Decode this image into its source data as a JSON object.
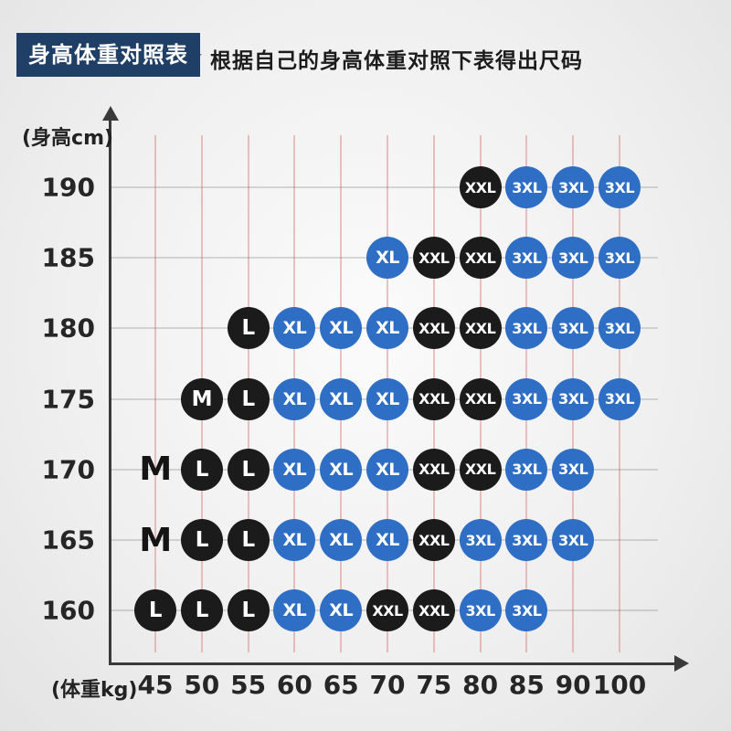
{
  "header": {
    "title": "身高体重对照表",
    "star": "★",
    "subtitle": "根据自己的身高体重对照下表得出尺码"
  },
  "chart_data": {
    "type": "scatter",
    "title": "身高体重对照表",
    "xlabel": "(体重kg)",
    "ylabel": "(身高cm)",
    "x_ticks": [
      45,
      50,
      55,
      60,
      65,
      70,
      75,
      80,
      85,
      90,
      100
    ],
    "y_ticks": [
      190,
      185,
      180,
      175,
      170,
      165,
      160
    ],
    "colors": {
      "dot_black": "#1b1b1b",
      "dot_blue": "#2e6ec4",
      "header_navy": "#1f3f66"
    },
    "points": [
      {
        "height": 190,
        "weight": 80,
        "size": "XXL",
        "color": "black"
      },
      {
        "height": 190,
        "weight": 85,
        "size": "3XL",
        "color": "blue"
      },
      {
        "height": 190,
        "weight": 90,
        "size": "3XL",
        "color": "blue"
      },
      {
        "height": 190,
        "weight": 100,
        "size": "3XL",
        "color": "blue"
      },
      {
        "height": 185,
        "weight": 70,
        "size": "XL",
        "color": "blue"
      },
      {
        "height": 185,
        "weight": 75,
        "size": "XXL",
        "color": "black"
      },
      {
        "height": 185,
        "weight": 80,
        "size": "XXL",
        "color": "black"
      },
      {
        "height": 185,
        "weight": 85,
        "size": "3XL",
        "color": "blue"
      },
      {
        "height": 185,
        "weight": 90,
        "size": "3XL",
        "color": "blue"
      },
      {
        "height": 185,
        "weight": 100,
        "size": "3XL",
        "color": "blue"
      },
      {
        "height": 180,
        "weight": 55,
        "size": "L",
        "color": "black"
      },
      {
        "height": 180,
        "weight": 60,
        "size": "XL",
        "color": "blue"
      },
      {
        "height": 180,
        "weight": 65,
        "size": "XL",
        "color": "blue"
      },
      {
        "height": 180,
        "weight": 70,
        "size": "XL",
        "color": "blue"
      },
      {
        "height": 180,
        "weight": 75,
        "size": "XXL",
        "color": "black"
      },
      {
        "height": 180,
        "weight": 80,
        "size": "XXL",
        "color": "black"
      },
      {
        "height": 180,
        "weight": 85,
        "size": "3XL",
        "color": "blue"
      },
      {
        "height": 180,
        "weight": 90,
        "size": "3XL",
        "color": "blue"
      },
      {
        "height": 180,
        "weight": 100,
        "size": "3XL",
        "color": "blue"
      },
      {
        "height": 175,
        "weight": 50,
        "size": "M",
        "color": "black"
      },
      {
        "height": 175,
        "weight": 55,
        "size": "L",
        "color": "black"
      },
      {
        "height": 175,
        "weight": 60,
        "size": "XL",
        "color": "blue"
      },
      {
        "height": 175,
        "weight": 65,
        "size": "XL",
        "color": "blue"
      },
      {
        "height": 175,
        "weight": 70,
        "size": "XL",
        "color": "blue"
      },
      {
        "height": 175,
        "weight": 75,
        "size": "XXL",
        "color": "black"
      },
      {
        "height": 175,
        "weight": 80,
        "size": "XXL",
        "color": "black"
      },
      {
        "height": 175,
        "weight": 85,
        "size": "3XL",
        "color": "blue"
      },
      {
        "height": 175,
        "weight": 90,
        "size": "3XL",
        "color": "blue"
      },
      {
        "height": 175,
        "weight": 100,
        "size": "3XL",
        "color": "blue"
      },
      {
        "height": 170,
        "weight": 45,
        "size": "M",
        "color": "text"
      },
      {
        "height": 170,
        "weight": 50,
        "size": "L",
        "color": "black"
      },
      {
        "height": 170,
        "weight": 55,
        "size": "L",
        "color": "black"
      },
      {
        "height": 170,
        "weight": 60,
        "size": "XL",
        "color": "blue"
      },
      {
        "height": 170,
        "weight": 65,
        "size": "XL",
        "color": "blue"
      },
      {
        "height": 170,
        "weight": 70,
        "size": "XL",
        "color": "blue"
      },
      {
        "height": 170,
        "weight": 75,
        "size": "XXL",
        "color": "black"
      },
      {
        "height": 170,
        "weight": 80,
        "size": "XXL",
        "color": "black"
      },
      {
        "height": 170,
        "weight": 85,
        "size": "3XL",
        "color": "blue"
      },
      {
        "height": 170,
        "weight": 90,
        "size": "3XL",
        "color": "blue"
      },
      {
        "height": 165,
        "weight": 45,
        "size": "M",
        "color": "text"
      },
      {
        "height": 165,
        "weight": 50,
        "size": "L",
        "color": "black"
      },
      {
        "height": 165,
        "weight": 55,
        "size": "L",
        "color": "black"
      },
      {
        "height": 165,
        "weight": 60,
        "size": "XL",
        "color": "blue"
      },
      {
        "height": 165,
        "weight": 65,
        "size": "XL",
        "color": "blue"
      },
      {
        "height": 165,
        "weight": 70,
        "size": "XL",
        "color": "blue"
      },
      {
        "height": 165,
        "weight": 75,
        "size": "XXL",
        "color": "black"
      },
      {
        "height": 165,
        "weight": 80,
        "size": "3XL",
        "color": "blue"
      },
      {
        "height": 165,
        "weight": 85,
        "size": "3XL",
        "color": "blue"
      },
      {
        "height": 165,
        "weight": 90,
        "size": "3XL",
        "color": "blue"
      },
      {
        "height": 160,
        "weight": 45,
        "size": "L",
        "color": "black"
      },
      {
        "height": 160,
        "weight": 50,
        "size": "L",
        "color": "black"
      },
      {
        "height": 160,
        "weight": 55,
        "size": "L",
        "color": "black"
      },
      {
        "height": 160,
        "weight": 60,
        "size": "XL",
        "color": "blue"
      },
      {
        "height": 160,
        "weight": 65,
        "size": "XL",
        "color": "blue"
      },
      {
        "height": 160,
        "weight": 70,
        "size": "XXL",
        "color": "black"
      },
      {
        "height": 160,
        "weight": 75,
        "size": "XXL",
        "color": "black"
      },
      {
        "height": 160,
        "weight": 80,
        "size": "3XL",
        "color": "blue"
      },
      {
        "height": 160,
        "weight": 85,
        "size": "3XL",
        "color": "blue"
      }
    ]
  }
}
